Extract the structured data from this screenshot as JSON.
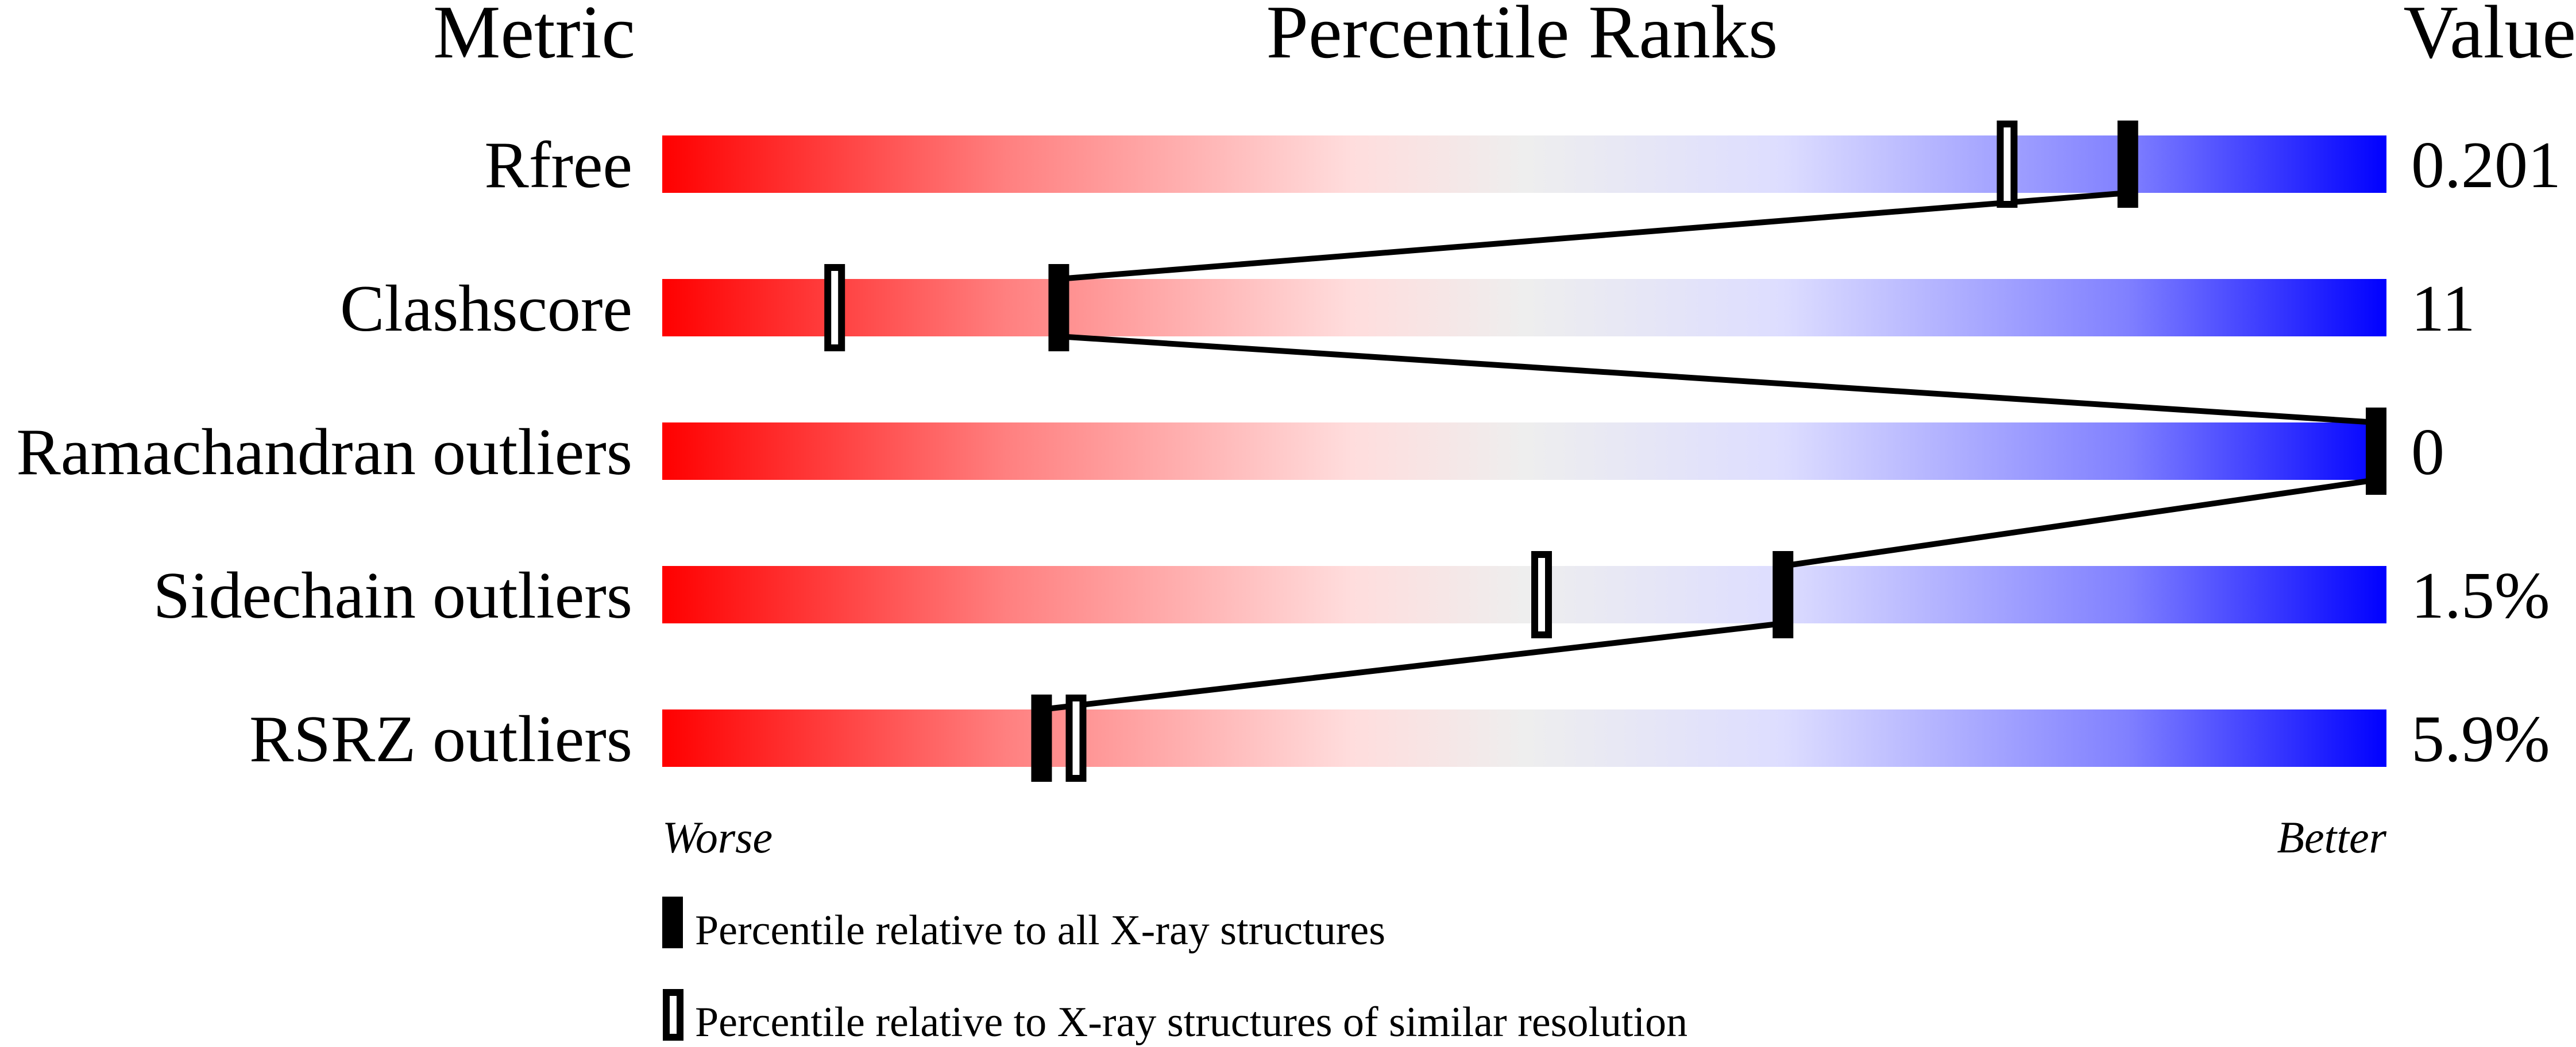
{
  "chart_data": {
    "type": "percentile-slider",
    "headers": {
      "metric": "Metric",
      "ranks": "Percentile Ranks",
      "value": "Value"
    },
    "xlim": [
      0,
      100
    ],
    "axis_labels": {
      "left": "Worse",
      "right": "Better"
    },
    "gradient_colors": [
      "#FF0000",
      "#FF8080",
      "#FFDDDD",
      "#EEEEEE",
      "#DDDDFF",
      "#8080FF",
      "#0000FF"
    ],
    "rows": [
      {
        "metric": "Rfree",
        "value": "0.201",
        "percentile_all": 85,
        "percentile_similar": 78
      },
      {
        "metric": "Clashscore",
        "value": "11",
        "percentile_all": 23,
        "percentile_similar": 10
      },
      {
        "metric": "Ramachandran outliers",
        "value": "0",
        "percentile_all": 100,
        "percentile_similar": 100
      },
      {
        "metric": "Sidechain outliers",
        "value": "1.5%",
        "percentile_all": 65,
        "percentile_similar": 51
      },
      {
        "metric": "RSRZ outliers",
        "value": "5.9%",
        "percentile_all": 22,
        "percentile_similar": 24
      }
    ],
    "legend": [
      {
        "marker": "filled",
        "label": "Percentile relative to all X-ray structures"
      },
      {
        "marker": "open",
        "label": "Percentile relative to X-ray structures of similar resolution"
      }
    ]
  }
}
